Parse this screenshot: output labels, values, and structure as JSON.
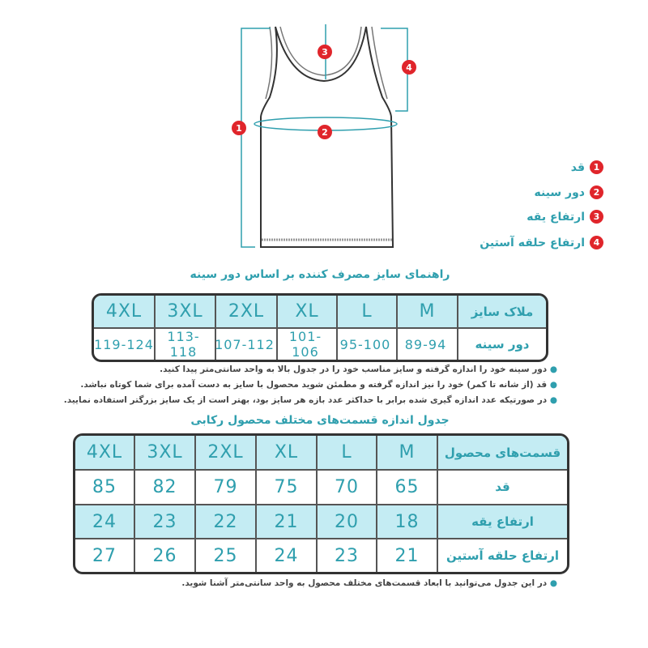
{
  "diagram": {
    "markers": [
      "1",
      "2",
      "3",
      "4"
    ],
    "accent": "#2f9fae",
    "badge_color": "#e0252b"
  },
  "legend": [
    {
      "num": "1",
      "label": "قد"
    },
    {
      "num": "2",
      "label": "دور سینه"
    },
    {
      "num": "3",
      "label": "ارتفاع یقه"
    },
    {
      "num": "4",
      "label": "ارتفاع حلقه آستین"
    }
  ],
  "guide_title": "راهنمای سایز مصرف کننده بر اساس دور سینه",
  "guide_table": {
    "header": [
      "ملاک سایز",
      "M",
      "L",
      "XL",
      "2XL",
      "3XL",
      "4XL"
    ],
    "rows": [
      [
        "دور سینه",
        "89-94",
        "95-100",
        "101-106",
        "107-112",
        "113-118",
        "119-124"
      ]
    ]
  },
  "notes": [
    "دور سینه خود را اندازه گرفته و سایز مناسب خود را در جدول بالا به واحد سانتی‌متر پیدا کنید.",
    "قد (از شانه تا کمر) خود را نیز اندازه گرفته و مطمئن شوید محصول با سایز به دست آمده برای شما کوتاه نباشد.",
    "در صورتیکه عدد اندازه گیری شده برابر با حداکثر عدد بازه هر سایز بود، بهتر است از یک سایز بزرگتر استفاده نمایید."
  ],
  "product_title": "جدول اندازه قسمت‌های مختلف محصول رکابی",
  "product_table": {
    "header": [
      "قسمت‌های محصول",
      "M",
      "L",
      "XL",
      "2XL",
      "3XL",
      "4XL"
    ],
    "rows": [
      [
        "قد",
        "65",
        "70",
        "75",
        "79",
        "82",
        "85"
      ],
      [
        "ارتفاع یقه",
        "18",
        "20",
        "21",
        "22",
        "23",
        "24"
      ],
      [
        "ارتفاع حلقه آستین",
        "21",
        "23",
        "24",
        "25",
        "26",
        "27"
      ]
    ]
  },
  "footnote": "در این جدول می‌توانید با ابعاد قسمت‌های مختلف محصول به واحد سانتی‌متر آشنا شوید."
}
